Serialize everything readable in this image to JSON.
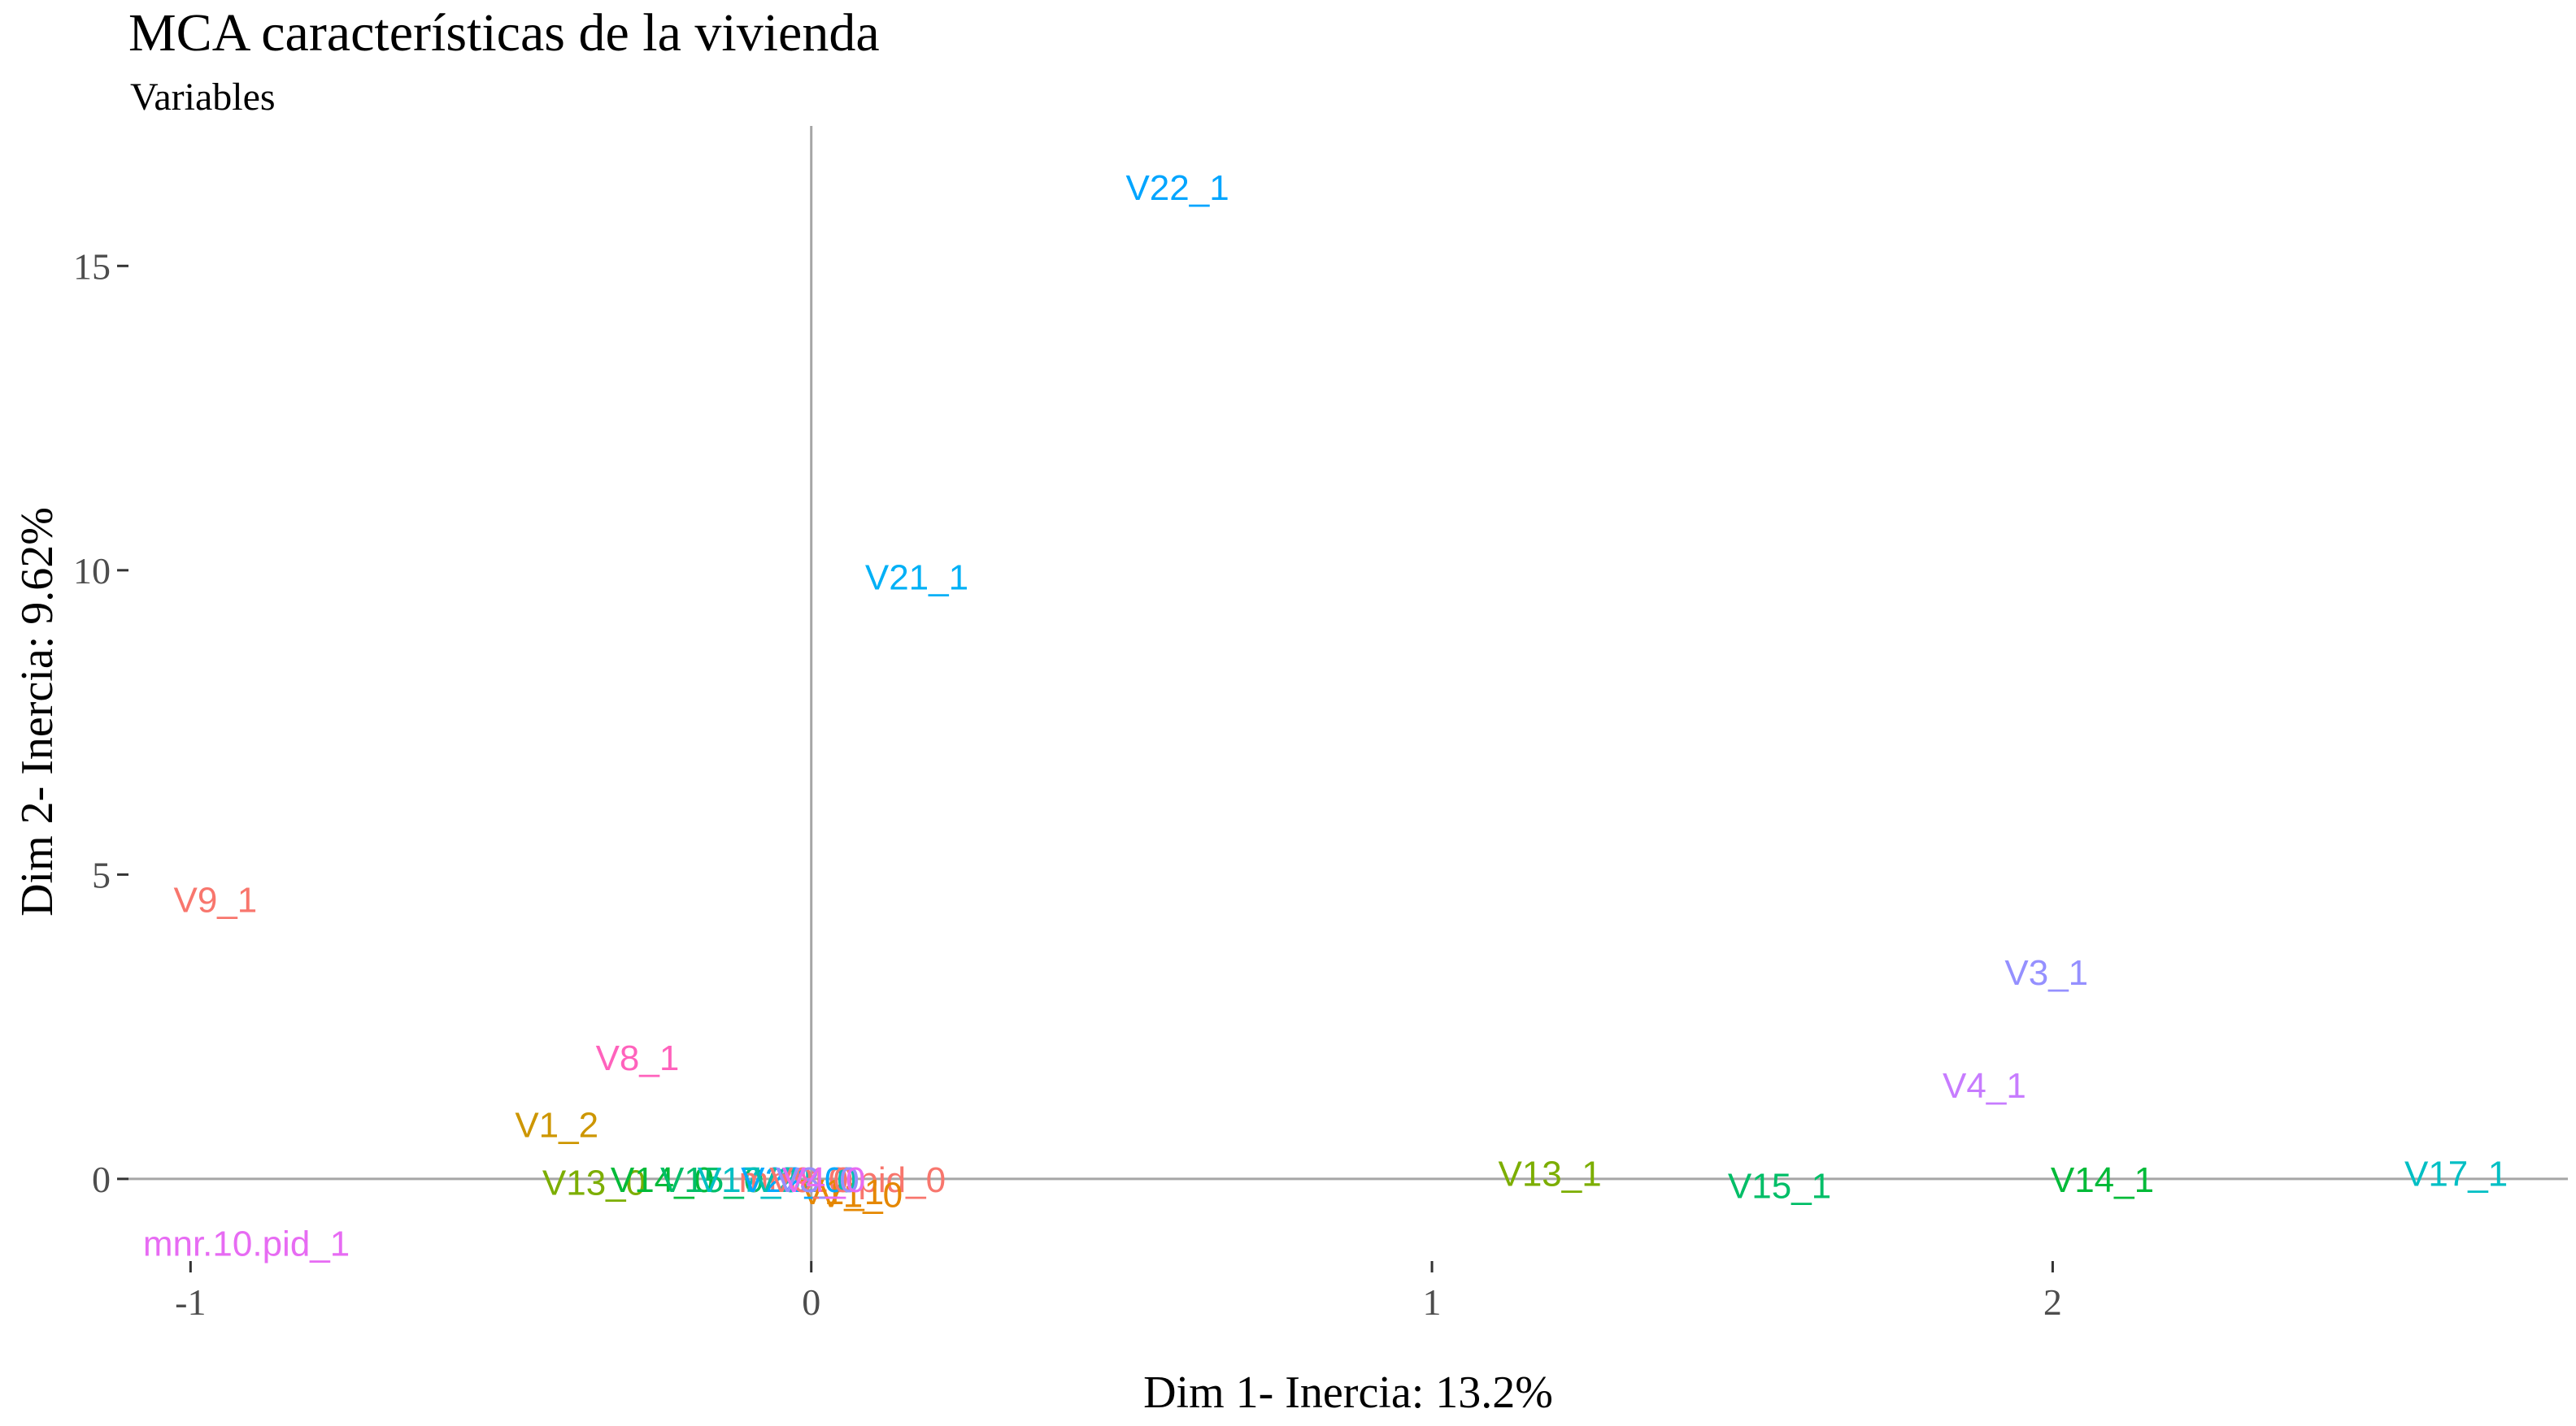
{
  "chart_data": {
    "type": "scatter",
    "title": "MCA características de la vivienda",
    "subtitle": "Variables",
    "xlabel": "Dim 1- Inercia: 13.2%",
    "ylabel": "Dim 2- Inercia: 9.62%",
    "xlim": [
      -1.1,
      2.83
    ],
    "ylim": [
      -1.35,
      17.3
    ],
    "xticks": [
      -1,
      0,
      1,
      2
    ],
    "yticks": [
      0,
      5,
      10,
      15
    ],
    "xtick_labels": [
      "-1",
      "0",
      "1",
      "2"
    ],
    "ytick_labels": [
      "0",
      "5",
      "10",
      "15"
    ],
    "grid": false,
    "legend": "none",
    "zero_lines": true,
    "zero_line_color": "#a6a6a6",
    "points": [
      {
        "label": "V22_1",
        "x": 0.59,
        "y": 16.3,
        "color": "#00A5FF"
      },
      {
        "label": "V21_1",
        "x": 0.17,
        "y": 9.9,
        "color": "#00B0F6"
      },
      {
        "label": "V9_1",
        "x": -0.96,
        "y": 4.6,
        "color": "#F8766D"
      },
      {
        "label": "V3_1",
        "x": 1.99,
        "y": 3.4,
        "color": "#9590FF"
      },
      {
        "label": "V8_1",
        "x": -0.28,
        "y": 2.0,
        "color": "#FF62BC"
      },
      {
        "label": "V4_1",
        "x": 1.89,
        "y": 1.55,
        "color": "#C77CFF"
      },
      {
        "label": "V1_2",
        "x": -0.41,
        "y": 0.9,
        "color": "#CD9600"
      },
      {
        "label": "V13_1",
        "x": 1.19,
        "y": 0.1,
        "color": "#7CAE00"
      },
      {
        "label": "V15_1",
        "x": 1.56,
        "y": -0.1,
        "color": "#00BE67"
      },
      {
        "label": "V14_1",
        "x": 2.08,
        "y": 0.0,
        "color": "#00BA38"
      },
      {
        "label": "V17_1",
        "x": 2.65,
        "y": 0.1,
        "color": "#00BFC4"
      },
      {
        "label": "mnr.10.pid_1",
        "x": -0.91,
        "y": -1.05,
        "color": "#E76BF3"
      },
      {
        "label": "V13_0",
        "x": -0.35,
        "y": -0.05,
        "color": "#7CAE00"
      },
      {
        "label": "V14_0",
        "x": -0.24,
        "y": 0.0,
        "color": "#00BA38"
      },
      {
        "label": "V15_0",
        "x": -0.16,
        "y": 0.0,
        "color": "#00BE67"
      },
      {
        "label": "V17_0",
        "x": -0.1,
        "y": 0.0,
        "color": "#00BFC4"
      },
      {
        "label": "mnr.10.pid_0",
        "x": 0.05,
        "y": 0.0,
        "color": "#F8766D"
      },
      {
        "label": "V1_1",
        "x": 0.05,
        "y": -0.2,
        "color": "#E58700"
      },
      {
        "label": "V1_0",
        "x": 0.08,
        "y": -0.25,
        "color": "#E58700"
      },
      {
        "label": "V22_0",
        "x": -0.03,
        "y": 0.0,
        "color": "#00A9FF"
      },
      {
        "label": "V21_0",
        "x": -0.01,
        "y": 0.0,
        "color": "#00C0AF"
      },
      {
        "label": "V9_0",
        "x": 0.0,
        "y": 0.0,
        "color": "#F8766D"
      },
      {
        "label": "V8_0",
        "x": 0.01,
        "y": 0.0,
        "color": "#FF61C3"
      },
      {
        "label": "V3_0",
        "x": 0.01,
        "y": 0.0,
        "color": "#9590FF"
      },
      {
        "label": "V4_0",
        "x": 0.02,
        "y": 0.0,
        "color": "#E76BF3"
      }
    ]
  }
}
